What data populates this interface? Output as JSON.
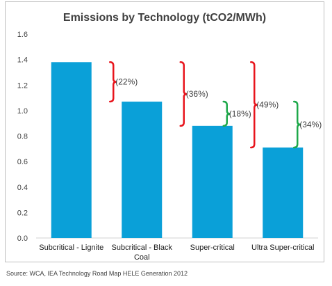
{
  "chart_data": {
    "type": "bar",
    "title": "Emissions by Technology (tCO2/MWh)",
    "categories": [
      [
        "Subcritical - Lignite"
      ],
      [
        "Subcritical - Black",
        "Coal"
      ],
      [
        "Super-critical"
      ],
      [
        "Ultra Super-critical"
      ]
    ],
    "values": [
      1.38,
      1.07,
      0.88,
      0.71
    ],
    "ylim": [
      0,
      1.6
    ],
    "yticks": [
      "0.0",
      "0.2",
      "0.4",
      "0.6",
      "0.8",
      "1.0",
      "1.2",
      "1.4",
      "1.6"
    ],
    "grid": false,
    "bar_color": "#0aa0d8",
    "annotations": [
      {
        "label": "(22%)",
        "from_category": 0,
        "to_category": 1,
        "from_value": 1.38,
        "to_value": 1.07,
        "color": "#e8141c"
      },
      {
        "label": "(36%)",
        "from_category": 0,
        "to_category": 2,
        "from_value": 1.38,
        "to_value": 0.88,
        "color": "#e8141c"
      },
      {
        "label": "(18%)",
        "from_category": 1,
        "to_category": 2,
        "from_value": 1.07,
        "to_value": 0.88,
        "color": "#1ea84a"
      },
      {
        "label": "(49%)",
        "from_category": 0,
        "to_category": 3,
        "from_value": 1.38,
        "to_value": 0.71,
        "color": "#e8141c"
      },
      {
        "label": "(34%)",
        "from_category": 1,
        "to_category": 3,
        "from_value": 1.07,
        "to_value": 0.71,
        "color": "#1ea84a"
      }
    ]
  },
  "source": "Source: WCA, IEA Technology Road Map HELE Generation 2012"
}
